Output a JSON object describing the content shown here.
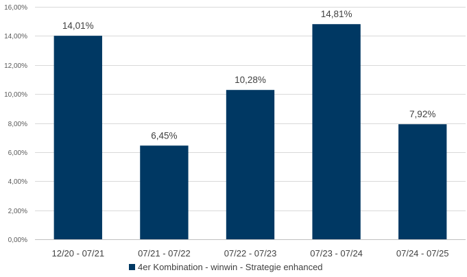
{
  "chart_data": {
    "type": "bar",
    "categories": [
      "12/20 - 07/21",
      "07/21 - 07/22",
      "07/22 - 07/23",
      "07/23 - 07/24",
      "07/24 - 07/25"
    ],
    "series": [
      {
        "name": "4er Kombination - winwin - Strategie enhanced",
        "values": [
          14.01,
          6.45,
          10.28,
          14.81,
          7.92
        ],
        "labels": [
          "14,01%",
          "6,45%",
          "10,28%",
          "14,81%",
          "7,92%"
        ],
        "color": "#003863"
      }
    ],
    "ylim": [
      0,
      16
    ],
    "yticks": [
      0,
      2,
      4,
      6,
      8,
      10,
      12,
      14,
      16
    ],
    "ytick_labels": [
      "0,00%",
      "2,00%",
      "4,00%",
      "6,00%",
      "8,00%",
      "10,00%",
      "12,00%",
      "14,00%",
      "16,00%"
    ],
    "grid": true,
    "grid_color": "#d9d9d9",
    "legend_position": "bottom",
    "title": "",
    "xlabel": "",
    "ylabel": ""
  }
}
